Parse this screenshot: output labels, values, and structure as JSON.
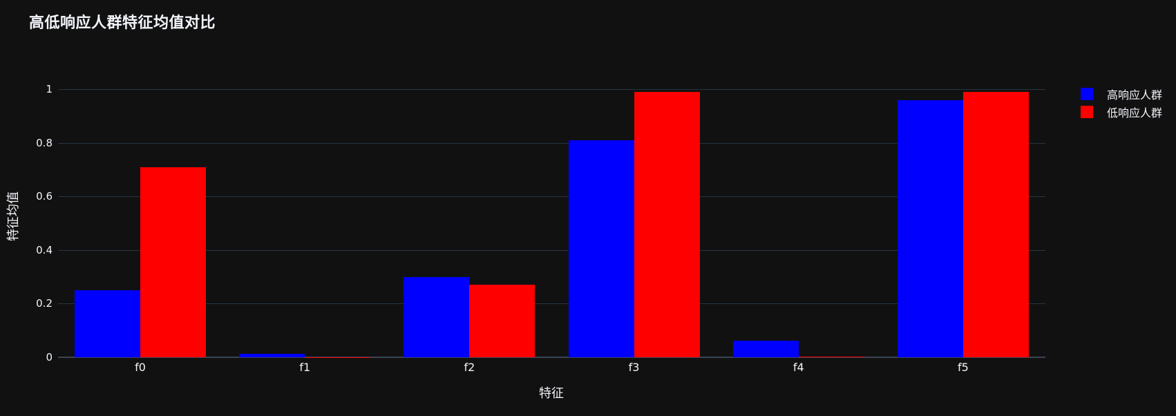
{
  "chart_data": {
    "type": "bar",
    "title": "高低响应人群特征均值对比",
    "xlabel": "特征",
    "ylabel": "特征均值",
    "categories": [
      "f0",
      "f1",
      "f2",
      "f3",
      "f4",
      "f5"
    ],
    "series": [
      {
        "name": "高响应人群",
        "color": "#0000ff",
        "values": [
          0.25,
          0.012,
          0.3,
          0.81,
          0.062,
          0.96
        ]
      },
      {
        "name": "低响应人群",
        "color": "#ff0000",
        "values": [
          0.71,
          0.001,
          0.27,
          0.99,
          0.003,
          0.99
        ]
      }
    ],
    "yticks": [
      0,
      0.2,
      0.4,
      0.6,
      0.8,
      1
    ],
    "ytick_labels": [
      "0",
      "0.2",
      "0.4",
      "0.6",
      "0.8",
      "1"
    ],
    "ylim": [
      0,
      1.04
    ],
    "grid": true,
    "legend_position": "top-right",
    "colors": {
      "background": "#111111",
      "text": "#f2f5fa",
      "gridline": "#283442",
      "axis_line": "#3a4554",
      "series_high": "#0000ff",
      "series_low": "#ff0000"
    }
  }
}
